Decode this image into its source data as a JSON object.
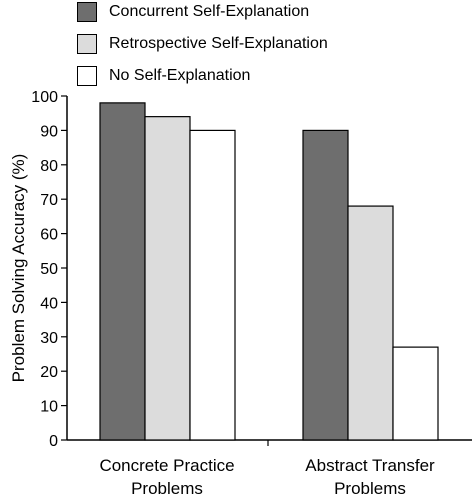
{
  "chart_data": {
    "type": "bar",
    "categories": [
      "Concrete Practice\nProblems",
      "Abstract Transfer\nProblems"
    ],
    "series": [
      {
        "name": "Concurrent Self-Explanation",
        "values": [
          98,
          90
        ],
        "color": "#6e6e6e"
      },
      {
        "name": "Retrospective Self-Explanation",
        "values": [
          94,
          68
        ],
        "color": "#dcdcdc"
      },
      {
        "name": "No Self-Explanation",
        "values": [
          90,
          27
        ],
        "color": "#ffffff"
      }
    ],
    "ylabel": "Problem Solving Accuracy (%)",
    "xlabel": "",
    "title": "",
    "ylim": [
      0,
      100
    ],
    "yticks": [
      0,
      10,
      20,
      30,
      40,
      50,
      60,
      70,
      80,
      90,
      100
    ],
    "grid": false,
    "legend_position": "top-left"
  }
}
